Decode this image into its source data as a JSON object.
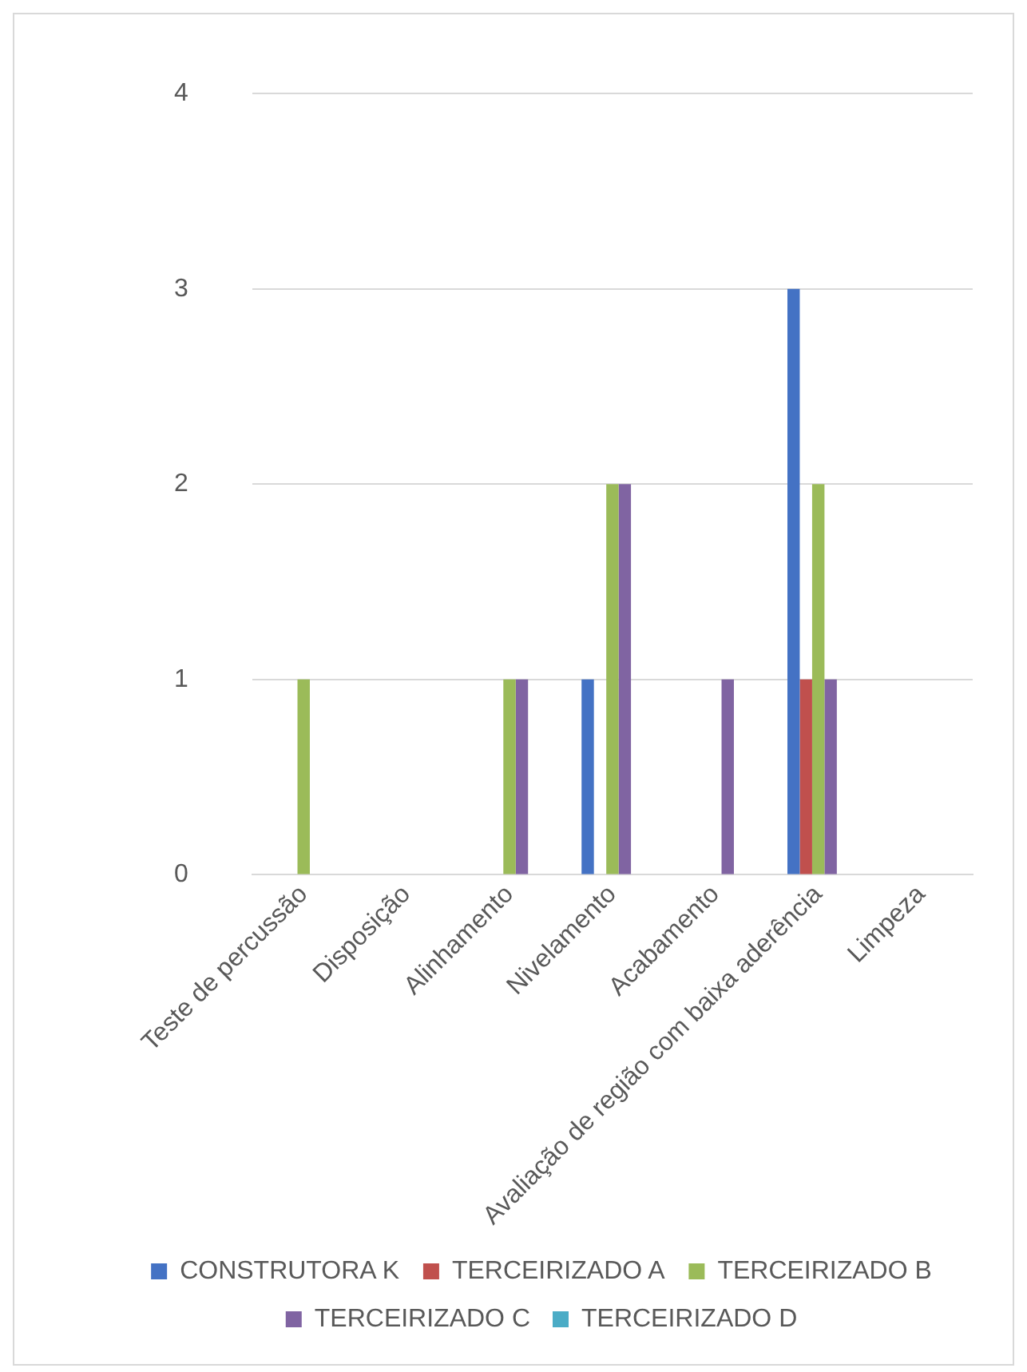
{
  "chart_data": {
    "type": "bar",
    "categories": [
      "Teste de percussão",
      "Disposição",
      "Alinhamento",
      "Nivelamento",
      "Acabamento",
      "Avaliação de região com baixa aderência",
      "Limpeza"
    ],
    "series": [
      {
        "name": "CONSTRUTORA K",
        "color": "#4472c4",
        "values": [
          0,
          0,
          0,
          1,
          0,
          3,
          0
        ]
      },
      {
        "name": "TERCEIRIZADO A",
        "color": "#c0504d",
        "values": [
          0,
          0,
          0,
          0,
          0,
          1,
          0
        ]
      },
      {
        "name": "TERCEIRIZADO B",
        "color": "#9bbb59",
        "values": [
          1,
          0,
          1,
          2,
          0,
          2,
          0
        ]
      },
      {
        "name": "TERCEIRIZADO C",
        "color": "#8064a2",
        "values": [
          0,
          0,
          1,
          2,
          1,
          1,
          0
        ]
      },
      {
        "name": "TERCEIRIZADO D",
        "color": "#4bacc6",
        "values": [
          0,
          0,
          0,
          0,
          0,
          0,
          0
        ]
      }
    ],
    "ylim": [
      0,
      4
    ],
    "yticks": [
      0,
      1,
      2,
      3,
      4
    ],
    "grid": "y",
    "legend": "bottom"
  }
}
